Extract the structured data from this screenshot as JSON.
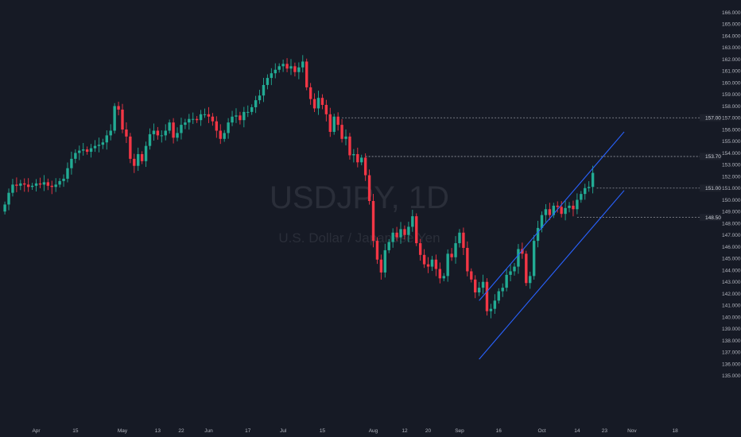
{
  "watermark": {
    "symbol": "USDJPY, 1D",
    "description": "U.S. Dollar / Japanese Yen"
  },
  "colors": {
    "background": "#161a25",
    "up": "#22ab94",
    "down": "#f23645",
    "channel": "#2962ff",
    "level_line": "#9598a1",
    "axis_text": "#b2b5be",
    "label_bg": "#1e222d"
  },
  "chart_data": {
    "type": "candlestick",
    "symbol": "USDJPY",
    "interval": "1D",
    "ylim": [
      134.5,
      166.5
    ],
    "y_ticks": [
      135,
      136,
      137,
      138,
      139,
      140,
      141,
      142,
      143,
      144,
      145,
      146,
      147,
      148,
      149,
      150,
      151,
      152,
      153,
      154,
      155,
      156,
      157,
      158,
      159,
      160,
      161,
      162,
      163,
      164,
      165,
      166
    ],
    "x_ticks": [
      {
        "label": "Apr",
        "bar": 8
      },
      {
        "label": "15",
        "bar": 18
      },
      {
        "label": "May",
        "bar": 30
      },
      {
        "label": "13",
        "bar": 39
      },
      {
        "label": "22",
        "bar": 45
      },
      {
        "label": "Jun",
        "bar": 52
      },
      {
        "label": "17",
        "bar": 62
      },
      {
        "label": "Jul",
        "bar": 71
      },
      {
        "label": "15",
        "bar": 81
      },
      {
        "label": "Aug",
        "bar": 94
      },
      {
        "label": "12",
        "bar": 102
      },
      {
        "label": "20",
        "bar": 108
      },
      {
        "label": "Sep",
        "bar": 116
      },
      {
        "label": "16",
        "bar": 126
      },
      {
        "label": "Oct",
        "bar": 137
      },
      {
        "label": "14",
        "bar": 146
      },
      {
        "label": "23",
        "bar": 153
      },
      {
        "label": "Nov",
        "bar": 160
      },
      {
        "label": "18",
        "bar": 171
      }
    ],
    "horizontal_levels": [
      {
        "price": 157.0,
        "label": "157.00",
        "from_bar": 86
      },
      {
        "price": 153.7,
        "label": "153.70",
        "from_bar": 92
      },
      {
        "price": 151.0,
        "label": "151.00",
        "from_bar": 151
      },
      {
        "price": 148.5,
        "label": "148.50",
        "from_bar": 146
      }
    ],
    "channel_lines": [
      {
        "from": {
          "bar": 121,
          "price": 141.4
        },
        "to": {
          "bar": 158,
          "price": 155.8
        }
      },
      {
        "from": {
          "bar": 121,
          "price": 136.4
        },
        "to": {
          "bar": 158,
          "price": 150.8
        }
      }
    ],
    "closes": [
      149.6,
      150.6,
      151.3,
      151.2,
      151.4,
      151.3,
      151.1,
      151.2,
      151.4,
      151.3,
      151.5,
      151.2,
      151.1,
      151.3,
      151.6,
      151.8,
      152.7,
      153.5,
      154.0,
      154.2,
      154.3,
      154.1,
      154.4,
      154.6,
      154.7,
      154.9,
      155.5,
      155.9,
      158.0,
      157.7,
      156.0,
      155.4,
      153.5,
      152.9,
      153.9,
      153.3,
      154.6,
      155.6,
      155.9,
      155.5,
      155.5,
      155.9,
      156.6,
      155.3,
      155.7,
      156.4,
      156.6,
      156.9,
      156.9,
      156.8,
      157.3,
      157.3,
      157.1,
      156.7,
      155.9,
      155.2,
      155.7,
      156.6,
      157.1,
      157.2,
      156.8,
      157.5,
      157.5,
      157.9,
      158.5,
      158.9,
      159.8,
      160.4,
      160.8,
      161.1,
      161.4,
      161.6,
      161.2,
      161.4,
      160.9,
      161.3,
      161.8,
      159.6,
      158.6,
      157.8,
      158.7,
      158.1,
      157.3,
      155.8,
      157.1,
      156.4,
      155.2,
      155.4,
      153.8,
      153.9,
      153.2,
      153.6,
      152.1,
      149.9,
      146.5,
      144.9,
      143.8,
      145.7,
      146.4,
      147.2,
      146.8,
      147.5,
      147.0,
      147.7,
      148.6,
      146.3,
      145.3,
      144.5,
      144.3,
      144.9,
      144.1,
      143.3,
      143.5,
      145.4,
      145.1,
      146.3,
      147.2,
      145.9,
      143.9,
      143.2,
      142.1,
      142.5,
      143.0,
      140.5,
      140.7,
      141.4,
      142.2,
      142.5,
      143.6,
      143.9,
      144.3,
      145.8,
      145.4,
      142.9,
      143.5,
      146.5,
      147.6,
      148.7,
      149.2,
      148.7,
      149.5,
      149.4,
      148.8,
      149.3,
      149.5,
      149.2,
      150.0,
      150.5,
      151.0,
      151.1,
      152.3
    ]
  }
}
